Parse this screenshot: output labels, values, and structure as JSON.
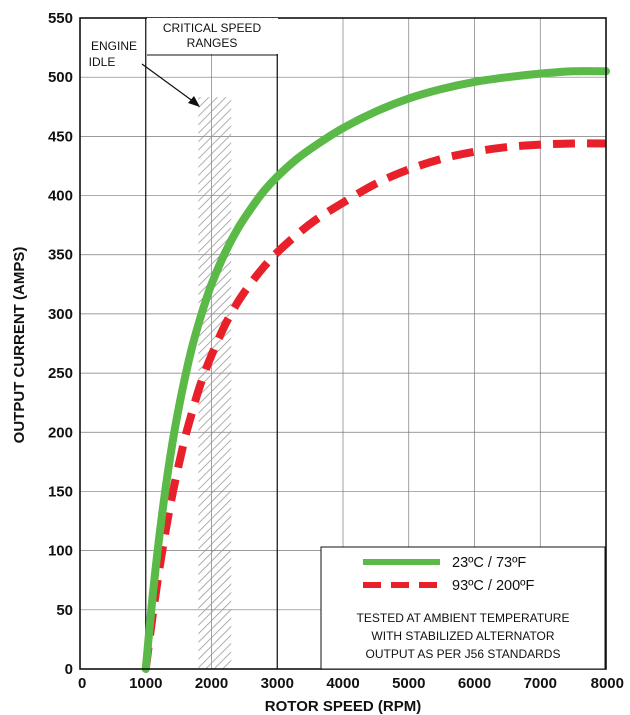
{
  "chart_data": {
    "type": "line",
    "xlabel": "ROTOR SPEED (RPM)",
    "ylabel": "OUTPUT CURRENT (AMPS)",
    "xlim": [
      0,
      8000
    ],
    "ylim": [
      0,
      550
    ],
    "x_ticks": [
      "0",
      "1000",
      "2000",
      "3000",
      "4000",
      "5000",
      "6000",
      "7000",
      "8000"
    ],
    "y_ticks": [
      "0",
      "50",
      "100",
      "150",
      "200",
      "250",
      "300",
      "350",
      "400",
      "450",
      "500",
      "550"
    ],
    "grid": true,
    "legend_position": "bottom-right",
    "series": [
      {
        "name": "23ºC / 73ºF",
        "color": "#5ab947",
        "style": "solid",
        "x": [
          1000,
          1100,
          1200,
          1300,
          1400,
          1500,
          1600,
          1700,
          1800,
          1900,
          2000,
          2200,
          2400,
          2600,
          2800,
          3000,
          3300,
          3600,
          4000,
          4500,
          5000,
          5500,
          6000,
          6500,
          7000,
          7500,
          8000
        ],
        "y": [
          0,
          59,
          109,
          152,
          189,
          220,
          247,
          271,
          291,
          309,
          325,
          351,
          372,
          389,
          404,
          416,
          431,
          443,
          457,
          471,
          482,
          490,
          496,
          500,
          503,
          505,
          505
        ]
      },
      {
        "name": "93ºC / 200ºF",
        "color": "#e8202a",
        "style": "dashed",
        "x": [
          1000,
          1100,
          1200,
          1300,
          1400,
          1500,
          1600,
          1700,
          1800,
          1900,
          2000,
          2200,
          2400,
          2600,
          2800,
          3000,
          3300,
          3600,
          4000,
          4500,
          5000,
          5500,
          6000,
          6500,
          7000,
          7500,
          8000
        ],
        "y": [
          0,
          43,
          82,
          116,
          146,
          172,
          196,
          216,
          235,
          251,
          265,
          290,
          310,
          326,
          340,
          352,
          367,
          380,
          394,
          410,
          422,
          431,
          437,
          441,
          443,
          444,
          444
        ]
      }
    ],
    "annotations": {
      "critical_title": "CRITICAL SPEED",
      "critical_sub": "RANGES",
      "engine_idle_1": "ENGINE",
      "engine_idle_2": "IDLE",
      "note_lines": [
        "TESTED AT AMBIENT TEMPERATURE",
        "WITH  STABILIZED ALTERNATOR",
        "OUTPUT AS PER J56 STANDARDS"
      ]
    },
    "critical_ranges_rpm": [
      [
        1800,
        2300
      ]
    ]
  }
}
